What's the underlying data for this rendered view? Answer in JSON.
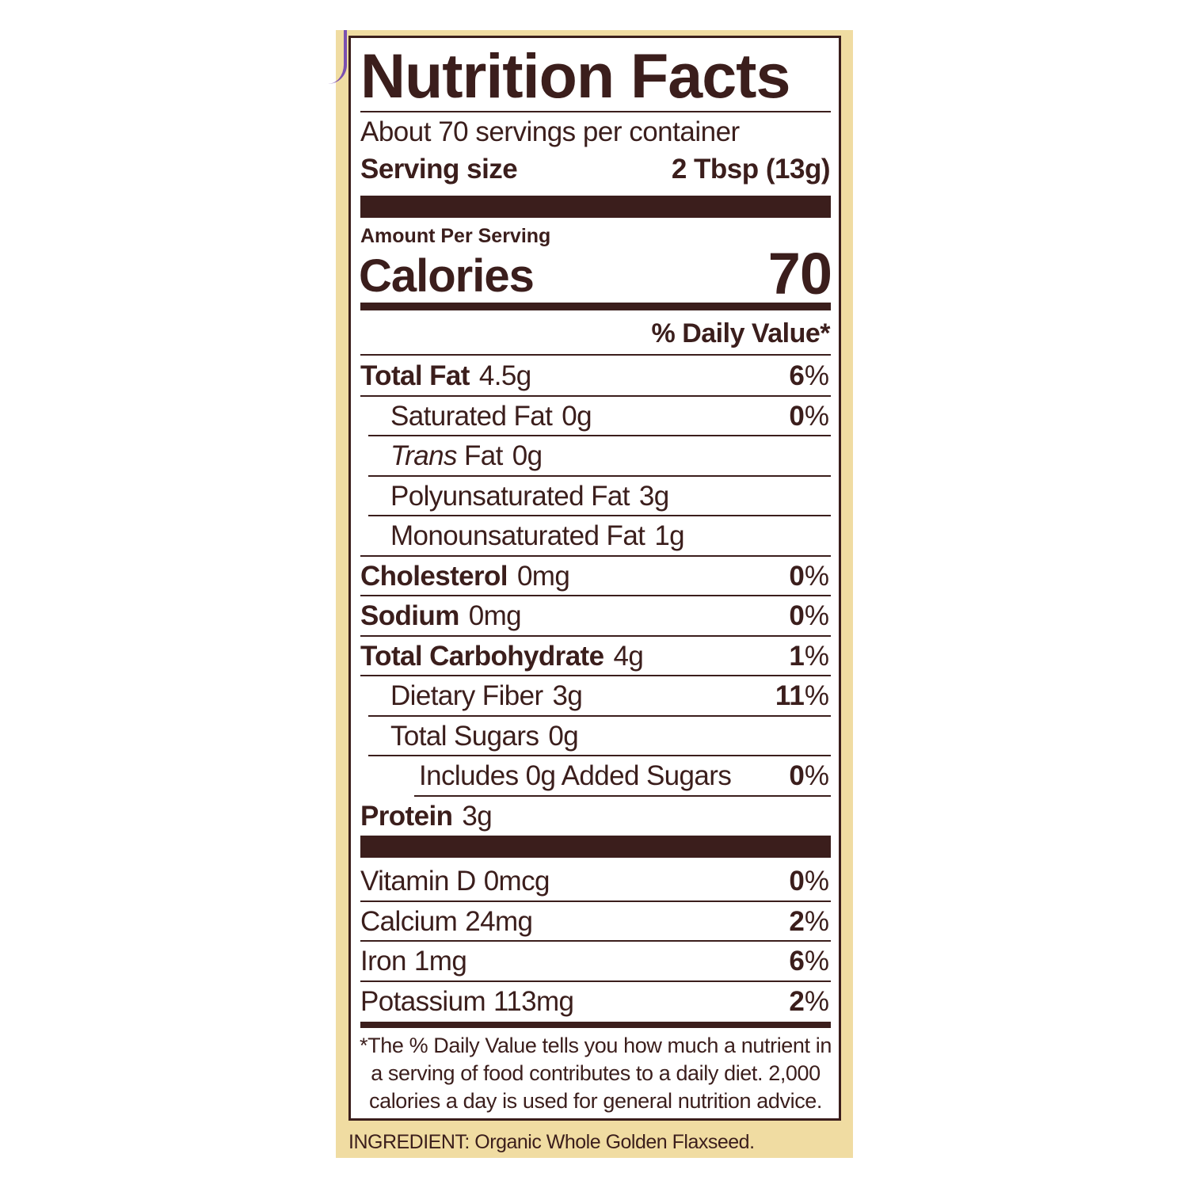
{
  "label": {
    "title": "Nutrition Facts",
    "servings": "About 70 servings per container",
    "serving_size_label": "Serving size",
    "serving_size_value": "2 Tbsp (13g)",
    "amount_per_serving": "Amount Per Serving",
    "calories_label": "Calories",
    "calories_value": "70",
    "dv_header": "% Daily Value*",
    "nutrients": [
      {
        "name": "Total Fat",
        "amount": "4.5g",
        "dv": "6",
        "bold": true,
        "indent": 0,
        "sepIndent": 0
      },
      {
        "name": "Saturated Fat",
        "amount": "0g",
        "dv": "0",
        "bold": false,
        "indent": 1,
        "sepIndent": 1
      },
      {
        "name": "Trans",
        "name_suffix": " Fat",
        "amount": "0g",
        "dv": "",
        "bold": false,
        "indent": 1,
        "italic": true,
        "sepIndent": 1
      },
      {
        "name": "Polyunsaturated Fat",
        "amount": "3g",
        "dv": "",
        "bold": false,
        "indent": 1,
        "sepIndent": 1
      },
      {
        "name": "Monounsaturated Fat",
        "amount": "1g",
        "dv": "",
        "bold": false,
        "indent": 1,
        "sepIndent": 0
      },
      {
        "name": "Cholesterol",
        "amount": "0mg",
        "dv": "0",
        "bold": true,
        "indent": 0,
        "sepIndent": 0
      },
      {
        "name": "Sodium",
        "amount": "0mg",
        "dv": "0",
        "bold": true,
        "indent": 0,
        "sepIndent": 0
      },
      {
        "name": "Total Carbohydrate",
        "amount": "4g",
        "dv": "1",
        "bold": true,
        "indent": 0,
        "sepIndent": 0
      },
      {
        "name": "Dietary Fiber",
        "amount": "3g",
        "dv": "11",
        "bold": false,
        "indent": 1,
        "sepIndent": 1
      },
      {
        "name": "Total Sugars",
        "amount": "0g",
        "dv": "",
        "bold": false,
        "indent": 1,
        "sepIndent": 1
      },
      {
        "name": "Includes 0g Added Sugars",
        "amount": "",
        "dv": "0",
        "bold": false,
        "indent": 2,
        "sepIndent": 2
      },
      {
        "name": "Protein",
        "amount": "3g",
        "dv": "",
        "bold": true,
        "indent": 0,
        "sepIndent": -1
      }
    ],
    "vitamins": [
      {
        "name": "Vitamin D",
        "amount": "0mcg",
        "dv": "0"
      },
      {
        "name": "Calcium",
        "amount": "24mg",
        "dv": "2"
      },
      {
        "name": "Iron",
        "amount": "1mg",
        "dv": "6"
      },
      {
        "name": "Potassium",
        "amount": "113mg",
        "dv": "2"
      }
    ],
    "percent_sign": "%",
    "footnote": [
      "*The % Daily Value tells you how much a nutrient in",
      "a serving of food contributes to a daily diet. 2,000",
      "calories a day is used for general nutrition advice."
    ]
  },
  "ingredient": "INGREDIENT: Organic Whole Golden Flaxseed.",
  "colors": {
    "ink": "#3b1e1c",
    "background": "#f0dca2",
    "accent": "#7b4fb0"
  }
}
